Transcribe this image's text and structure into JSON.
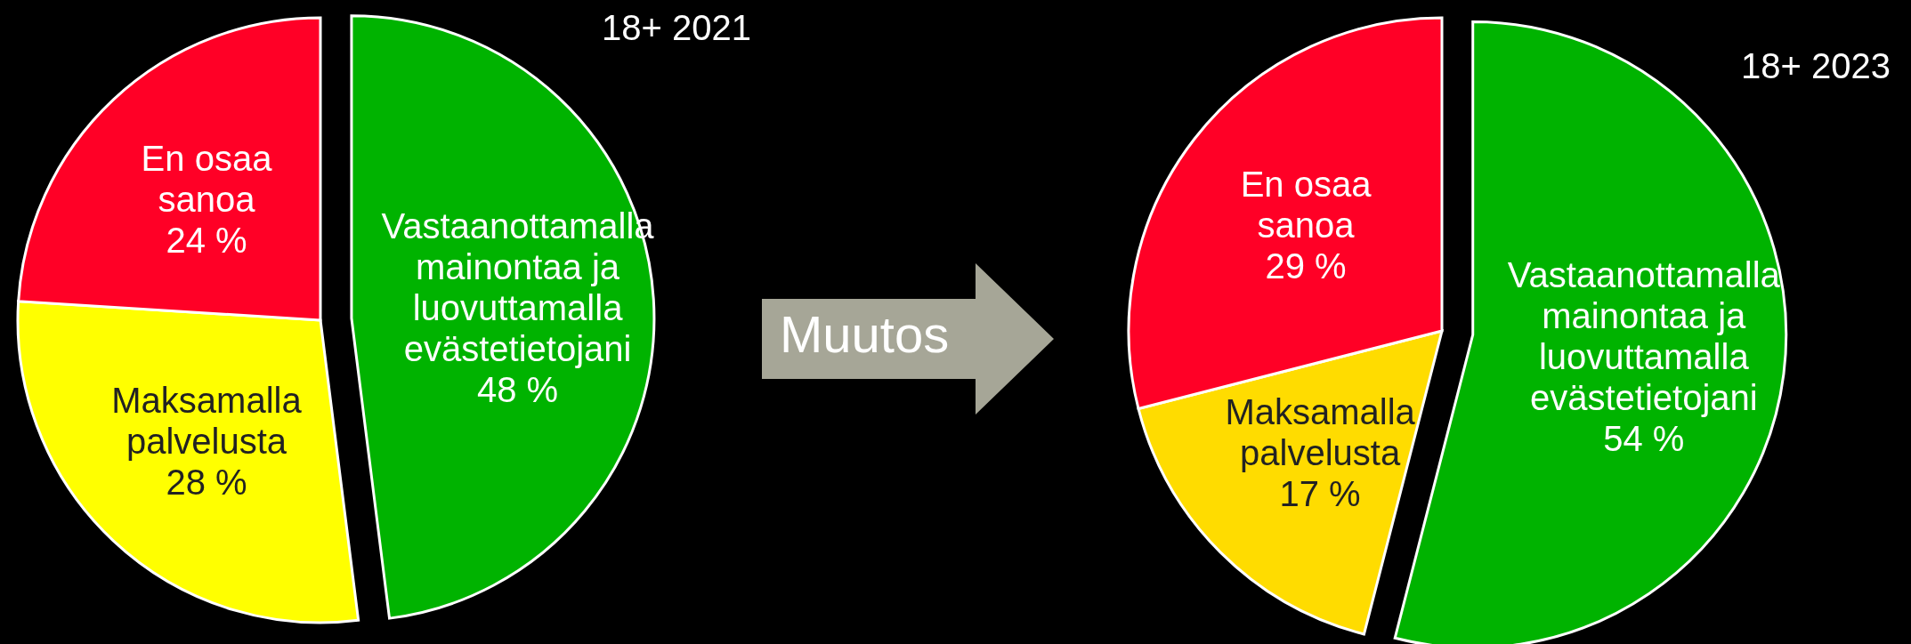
{
  "chart_data": [
    {
      "type": "pie",
      "title": "18+ 2021",
      "categories": [
        "Vastaanottamalla\nmainontaa ja\nluovuttamalla\nevästetietojani",
        "Maksamalla\npalvelusta",
        "En osaa\nsanoa"
      ],
      "values": [
        48,
        28,
        24
      ],
      "value_labels": [
        "48 %",
        "28 %",
        "24 %"
      ],
      "colors": [
        "#00b300",
        "#ffff00",
        "#ff0026"
      ],
      "annotations": [
        "Muutos"
      ]
    },
    {
      "type": "pie",
      "title": "18+ 2023",
      "categories": [
        "Vastaanottamalla\nmainontaa ja\nluovuttamalla\nevästetietojani",
        "Maksamalla\npalvelusta",
        "En osaa\nsanoa"
      ],
      "values": [
        54,
        17,
        29
      ],
      "value_labels": [
        "54 %",
        "17 %",
        "29 %"
      ],
      "colors": [
        "#00b300",
        "#ffdc00",
        "#ff0026"
      ]
    }
  ]
}
